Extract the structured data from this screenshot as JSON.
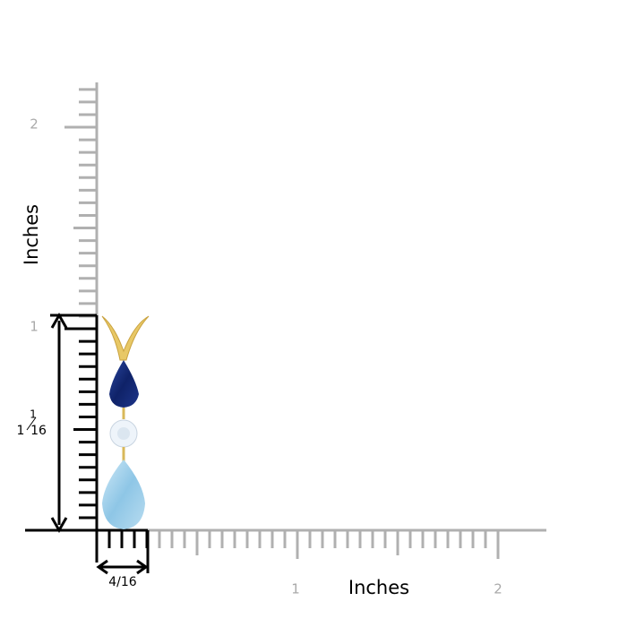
{
  "y_axis": {
    "label": "Inches",
    "ticks": [
      "1",
      "2"
    ]
  },
  "x_axis": {
    "label": "Inches",
    "ticks": [
      "1",
      "2"
    ]
  },
  "height_label": {
    "whole": "1",
    "numerator": "1",
    "denominator": "16"
  },
  "width_label": "4/16"
}
